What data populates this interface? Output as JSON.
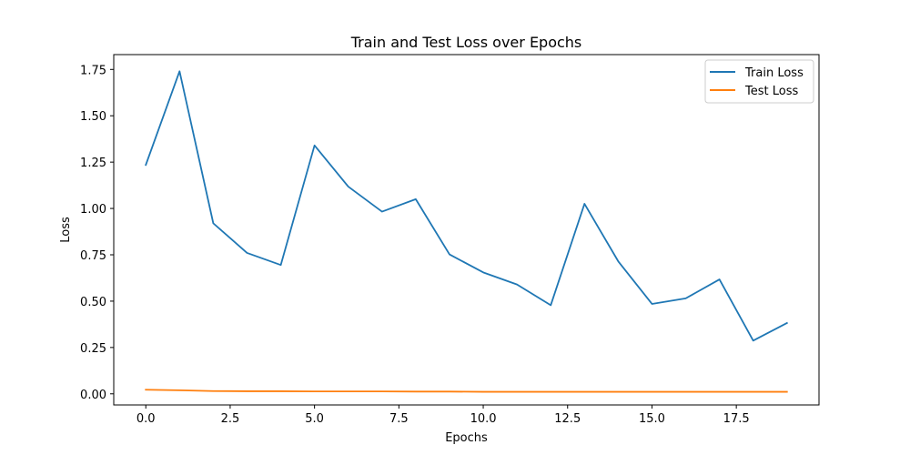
{
  "chart_data": {
    "type": "line",
    "title": "Train and Test Loss over Epochs",
    "xlabel": "Epochs",
    "ylabel": "Loss",
    "xlim": [
      -0.95,
      19.95
    ],
    "ylim": [
      -0.06,
      1.83
    ],
    "x_ticks": [
      0,
      2.5,
      5,
      7.5,
      10,
      12.5,
      15,
      17.5
    ],
    "x_tick_labels": [
      "0.0",
      "2.5",
      "5.0",
      "7.5",
      "10.0",
      "12.5",
      "15.0",
      "17.5"
    ],
    "y_ticks": [
      0,
      0.25,
      0.5,
      0.75,
      1.0,
      1.25,
      1.5,
      1.75
    ],
    "y_tick_labels": [
      "0.00",
      "0.25",
      "0.50",
      "0.75",
      "1.00",
      "1.25",
      "1.50",
      "1.75"
    ],
    "grid": false,
    "legend_position": "top-right",
    "x": [
      0,
      1,
      2,
      3,
      4,
      5,
      6,
      7,
      8,
      9,
      10,
      11,
      12,
      13,
      14,
      15,
      16,
      17,
      18,
      19
    ],
    "series": [
      {
        "name": "Train Loss",
        "color": "#1f77b4",
        "values": [
          1.235,
          1.74,
          0.92,
          0.76,
          0.695,
          1.34,
          1.118,
          0.983,
          1.05,
          0.752,
          0.655,
          0.59,
          0.478,
          1.025,
          0.715,
          0.485,
          0.515,
          0.617,
          0.287,
          0.382
        ]
      },
      {
        "name": "Test Loss",
        "color": "#ff7f0e",
        "values": [
          0.022,
          0.019,
          0.015,
          0.014,
          0.014,
          0.013,
          0.013,
          0.013,
          0.012,
          0.012,
          0.011,
          0.011,
          0.011,
          0.011,
          0.011,
          0.011,
          0.011,
          0.011,
          0.011,
          0.011
        ]
      }
    ]
  }
}
